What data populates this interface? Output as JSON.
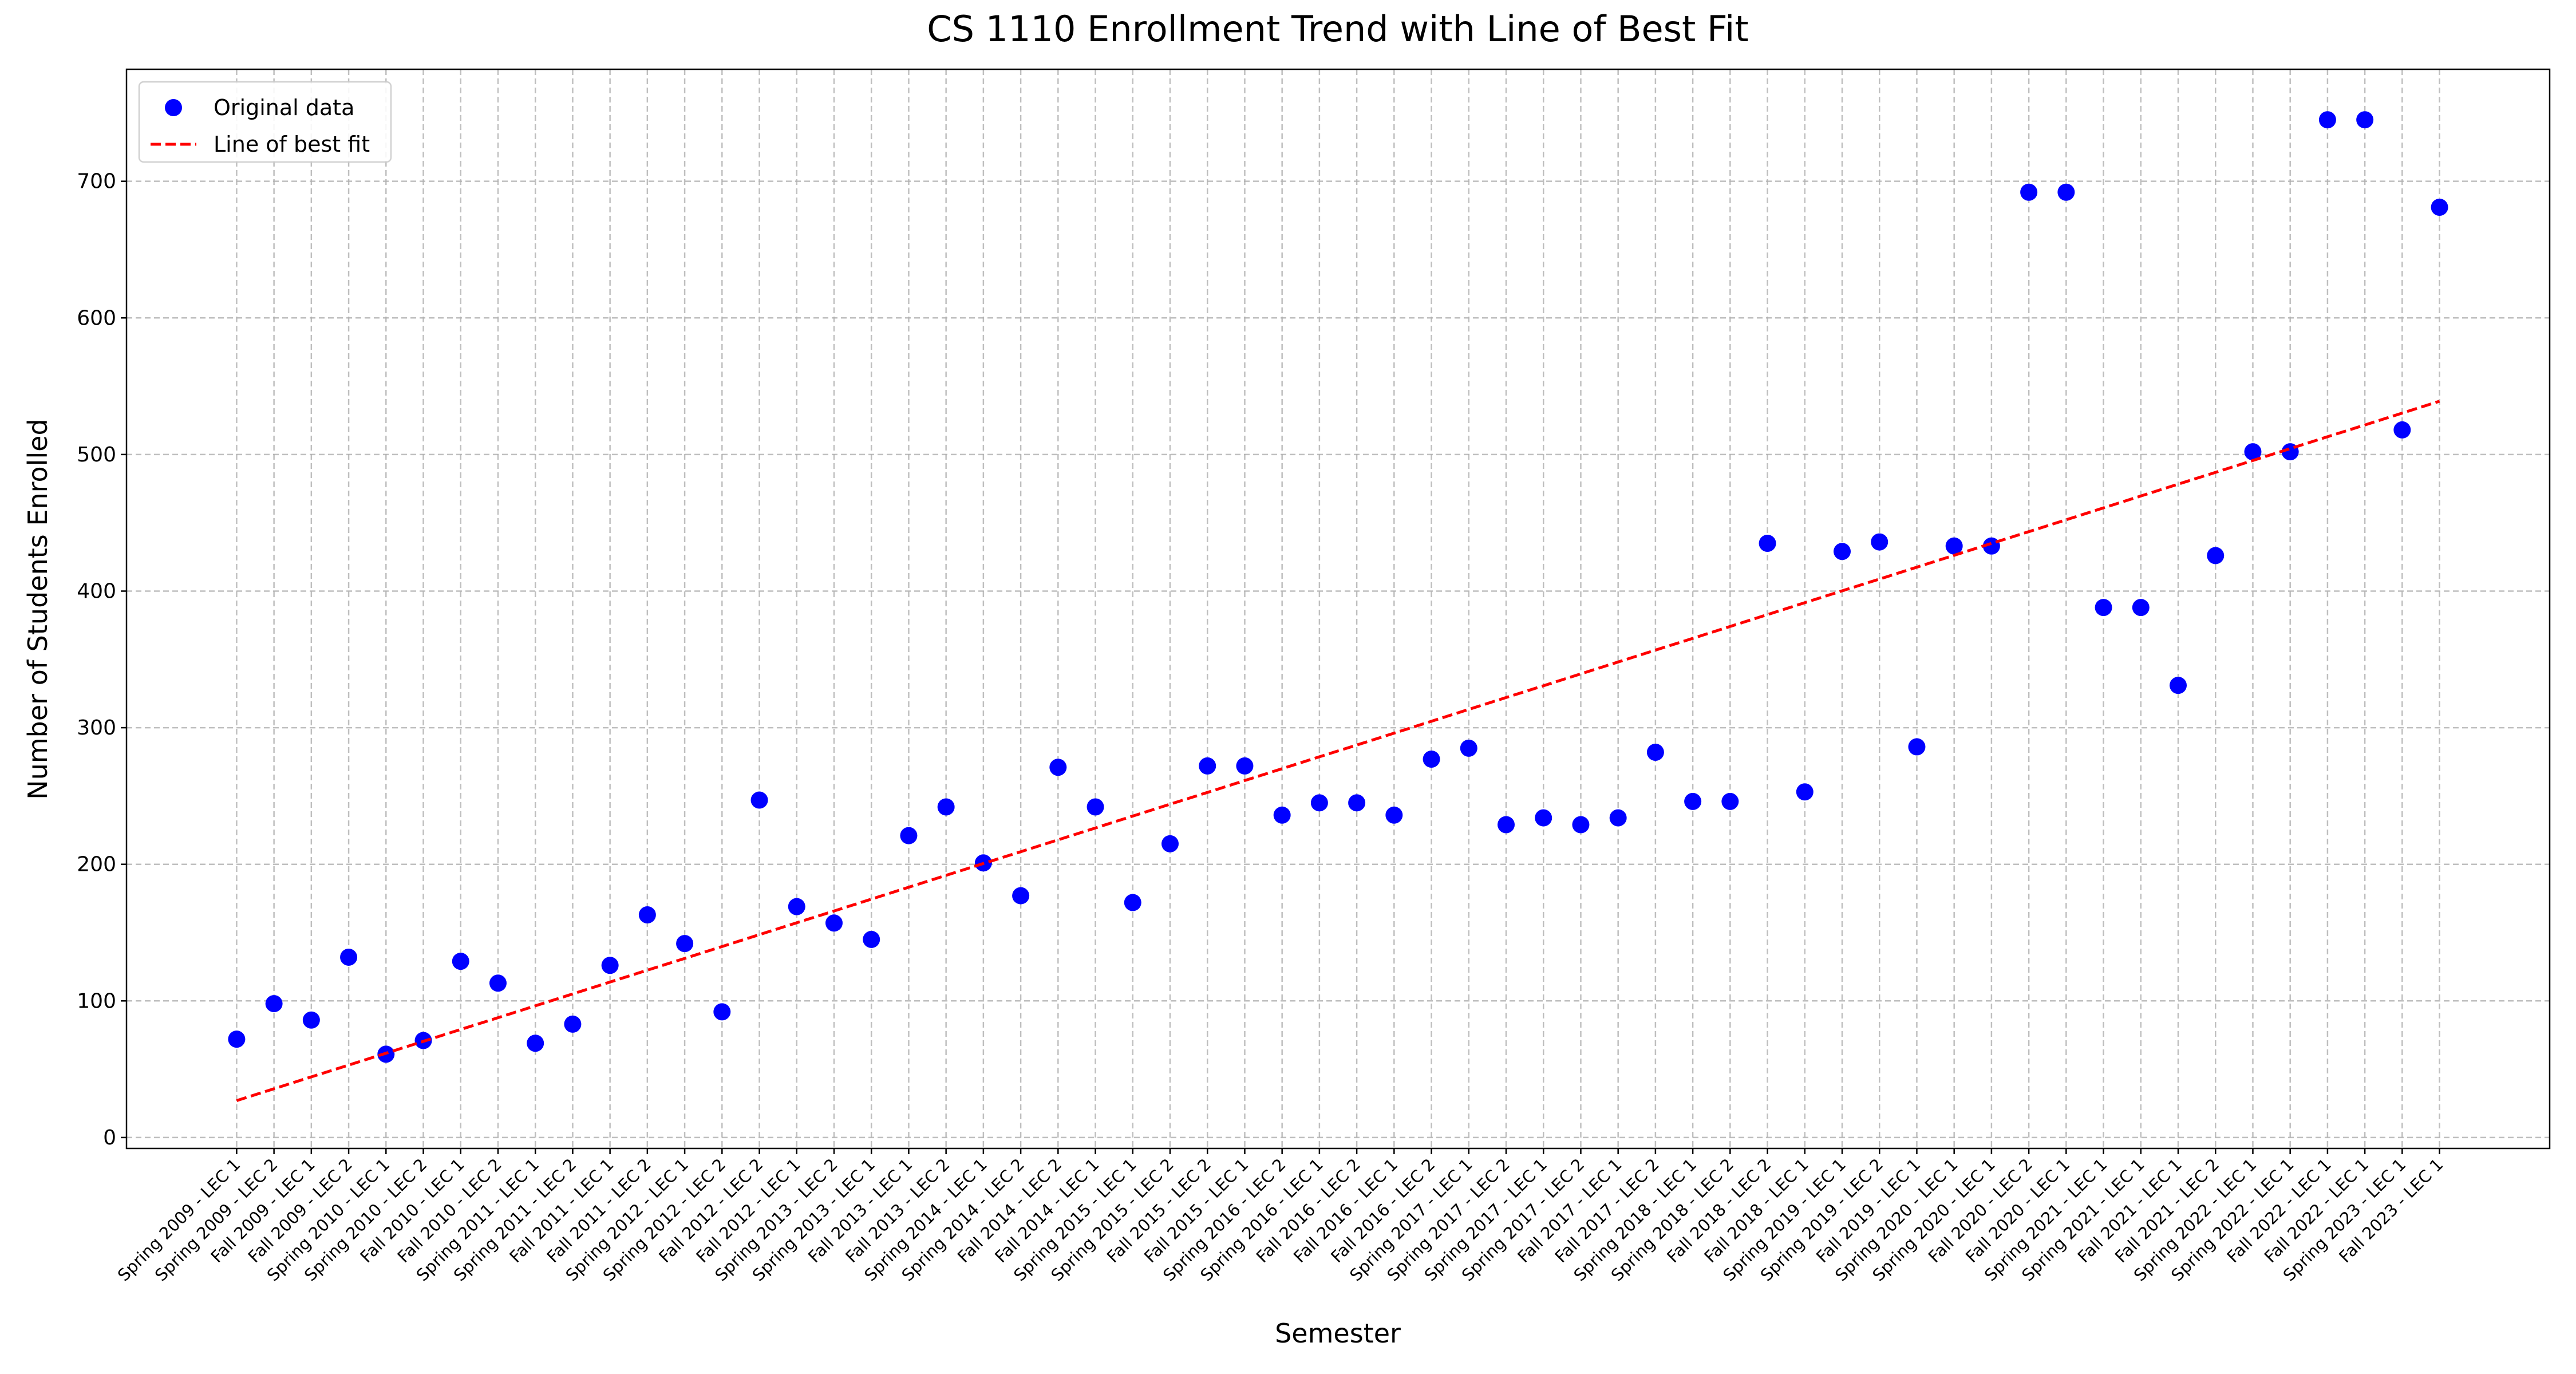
{
  "chart_data": {
    "type": "scatter",
    "title": "CS  1110 Enrollment Trend with Line of Best Fit",
    "x_label": "Semester",
    "y_label": "Number of Students Enrolled",
    "categories": [
      "Spring 2009 - LEC 1",
      "Spring 2009 - LEC 2",
      "Fall 2009 - LEC 1",
      "Fall 2009 - LEC 2",
      "Spring 2010 - LEC 1",
      "Spring 2010 - LEC 2",
      "Fall 2010 - LEC 1",
      "Fall 2010 - LEC 2",
      "Spring 2011 - LEC 1",
      "Spring 2011 - LEC 2",
      "Fall 2011 - LEC 1",
      "Fall 2011 - LEC 2",
      "Spring 2012 - LEC 1",
      "Spring 2012 - LEC 2",
      "Fall 2012 - LEC 2",
      "Fall 2012 - LEC 1",
      "Spring 2013 - LEC 2",
      "Spring 2013 - LEC 1",
      "Fall 2013 - LEC 1",
      "Fall 2013 - LEC 2",
      "Spring 2014 - LEC 1",
      "Spring 2014 - LEC 2",
      "Fall 2014 - LEC 2",
      "Fall 2014 - LEC 1",
      "Spring 2015 - LEC 1",
      "Spring 2015 - LEC 2",
      "Fall 2015 - LEC 2",
      "Fall 2015 - LEC 1",
      "Spring 2016 - LEC 2",
      "Spring 2016 - LEC 1",
      "Fall 2016 - LEC 2",
      "Fall 2016 - LEC 1",
      "Fall 2016 - LEC 2",
      "Spring 2017 - LEC 1",
      "Spring 2017 - LEC 2",
      "Spring 2017 - LEC 1",
      "Spring 2017 - LEC 2",
      "Fall 2017 - LEC 1",
      "Fall 2017 - LEC 2",
      "Spring 2018 - LEC 1",
      "Spring 2018 - LEC 2",
      "Fall 2018 - LEC 2",
      "Fall 2018 - LEC 1",
      "Spring 2019 - LEC 1",
      "Spring 2019 - LEC 2",
      "Fall 2019 - LEC 1",
      "Spring 2020 - LEC 1",
      "Spring 2020 - LEC 1",
      "Fall 2020 - LEC 2",
      "Fall 2020 - LEC 1",
      "Spring 2021 - LEC 1",
      "Spring 2021 - LEC 1",
      "Fall 2021 - LEC 1",
      "Fall 2021 - LEC 2",
      "Spring 2022 - LEC 1",
      "Spring 2022 - LEC 1",
      "Fall 2022 - LEC 1",
      "Fall 2022 - LEC 1",
      "Spring 2023 - LEC 1",
      "Fall 2023 - LEC 1"
    ],
    "series": [
      {
        "name": "Original data",
        "color": "#0000ff",
        "style": "markers",
        "values": [
          72,
          98,
          86,
          132,
          61,
          71,
          129,
          113,
          69,
          83,
          126,
          163,
          142,
          92,
          247,
          169,
          157,
          145,
          221,
          242,
          201,
          177,
          271,
          242,
          172,
          215,
          272,
          272,
          236,
          245,
          245,
          236,
          277,
          285,
          229,
          234,
          229,
          234,
          282,
          246,
          246,
          435,
          253,
          429,
          436,
          286,
          433,
          433,
          692,
          692,
          388,
          388,
          331,
          426,
          502,
          502,
          745,
          745,
          518,
          681
        ]
      },
      {
        "name": "Line of best fit",
        "color": "#ff0000",
        "style": "dashed",
        "values": [
          27,
          35.7,
          44.4,
          53,
          61.7,
          70.4,
          79.1,
          87.7,
          96.4,
          105.1,
          113.8,
          122.5,
          131.1,
          139.8,
          148.5,
          157.2,
          165.8,
          174.5,
          183.2,
          191.9,
          200.6,
          209.2,
          217.9,
          226.6,
          235.3,
          244,
          252.6,
          261.3,
          270,
          278.7,
          287.3,
          296,
          304.7,
          313.4,
          322.1,
          330.7,
          339.4,
          348.1,
          356.8,
          365.4,
          374.1,
          382.8,
          391.5,
          400.2,
          408.8,
          417.5,
          426.2,
          434.9,
          443.5,
          452.2,
          460.9,
          469.6,
          478.3,
          486.9,
          495.6,
          504.3,
          513,
          521.6,
          530.3,
          539
        ]
      }
    ],
    "ylim": [
      -8,
      782
    ],
    "yticks": [
      0,
      100,
      200,
      300,
      400,
      500,
      600,
      700
    ],
    "grid": true,
    "legend": "upper left"
  }
}
